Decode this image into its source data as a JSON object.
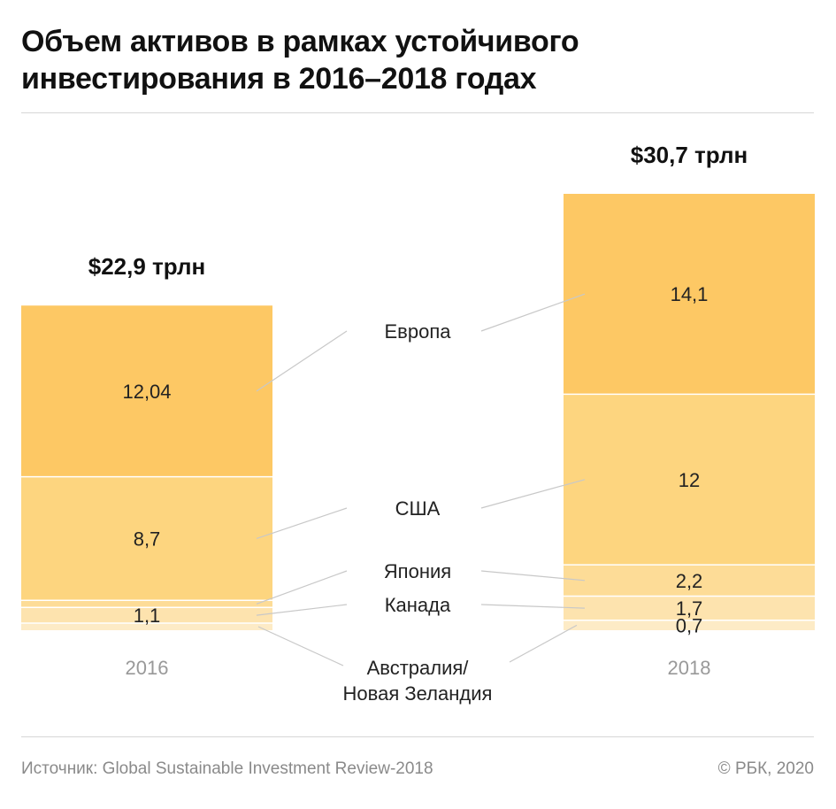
{
  "title": "Объем активов в рамках устойчивого инвестирования в 2016–2018 годах",
  "source": "Источник: Global Sustainable Investment Review-2018",
  "copyright": "© РБК, 2020",
  "chart_data": {
    "type": "bar",
    "stacked": true,
    "categories": [
      "2016",
      "2018"
    ],
    "totals_labels": [
      "$22,9 трлн",
      "$30,7 трлн"
    ],
    "totals": [
      22.9,
      30.7
    ],
    "series": [
      {
        "name": "Австралия/ Новая Зеландия",
        "values": [
          0.5,
          0.7
        ],
        "labels": [
          "",
          "0,7"
        ],
        "color": "#fdebc6"
      },
      {
        "name": "Канада",
        "values": [
          1.1,
          1.7
        ],
        "labels": [
          "1,1",
          "1,7"
        ],
        "color": "#fde3ae"
      },
      {
        "name": "Япония",
        "values": [
          0.5,
          2.2
        ],
        "labels": [
          "",
          "2,2"
        ],
        "color": "#fddc97"
      },
      {
        "name": "США",
        "values": [
          8.7,
          12
        ],
        "labels": [
          "8,7",
          "12"
        ],
        "color": "#fdd57f"
      },
      {
        "name": "Европа",
        "values": [
          12.04,
          14.1
        ],
        "labels": [
          "12,04",
          "14,1"
        ],
        "color": "#fdc864"
      }
    ],
    "ylim": [
      0,
      30.7
    ],
    "grid": false,
    "legend": "center"
  }
}
